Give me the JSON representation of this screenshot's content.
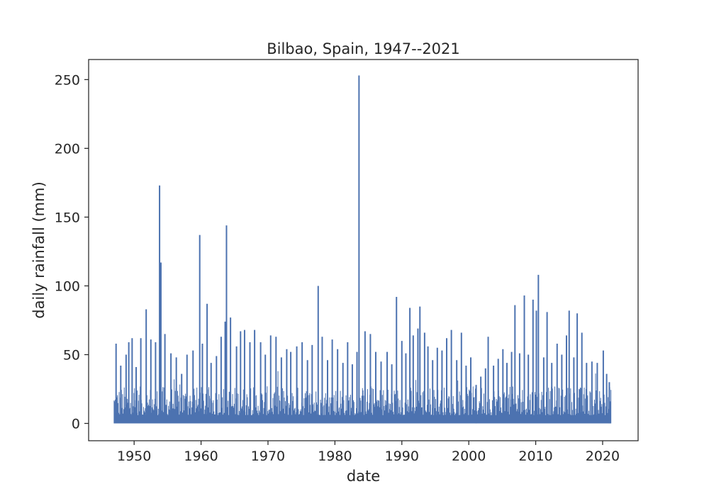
{
  "chart_data": {
    "type": "line",
    "title": "Bilbao, Spain, 1947--2021",
    "xlabel": "date",
    "ylabel": "daily rainfall (mm)",
    "xlim": [
      1943.2,
      2025.3
    ],
    "ylim": [
      -12.6,
      264.6
    ],
    "grid": false,
    "legend": "none",
    "color": "#4c72b0",
    "x_ticks": [
      1950,
      1960,
      1970,
      1980,
      1990,
      2000,
      2010,
      2020
    ],
    "x_tick_labels": [
      "1950",
      "1960",
      "1970",
      "1980",
      "1990",
      "2000",
      "2010",
      "2020"
    ],
    "y_ticks": [
      0,
      50,
      100,
      150,
      200,
      250
    ],
    "y_tick_labels": [
      "0",
      "50",
      "100",
      "150",
      "200",
      "250"
    ],
    "series_range": [
      "1947-01-01",
      "2021-03-31"
    ],
    "dense_band_max_mm": 27,
    "peaks": [
      {
        "x": 1947.3,
        "y": 58
      },
      {
        "x": 1948.0,
        "y": 42
      },
      {
        "x": 1948.8,
        "y": 50
      },
      {
        "x": 1949.2,
        "y": 59
      },
      {
        "x": 1949.7,
        "y": 62
      },
      {
        "x": 1950.3,
        "y": 41
      },
      {
        "x": 1951.0,
        "y": 62
      },
      {
        "x": 1951.8,
        "y": 83
      },
      {
        "x": 1952.5,
        "y": 61
      },
      {
        "x": 1953.2,
        "y": 59
      },
      {
        "x": 1953.8,
        "y": 173
      },
      {
        "x": 1954.0,
        "y": 117
      },
      {
        "x": 1954.6,
        "y": 65
      },
      {
        "x": 1955.5,
        "y": 51
      },
      {
        "x": 1956.3,
        "y": 48
      },
      {
        "x": 1957.1,
        "y": 36
      },
      {
        "x": 1957.9,
        "y": 50
      },
      {
        "x": 1958.8,
        "y": 53
      },
      {
        "x": 1959.8,
        "y": 137
      },
      {
        "x": 1960.2,
        "y": 58
      },
      {
        "x": 1960.9,
        "y": 87
      },
      {
        "x": 1961.5,
        "y": 44
      },
      {
        "x": 1962.3,
        "y": 49
      },
      {
        "x": 1963.0,
        "y": 63
      },
      {
        "x": 1963.6,
        "y": 74
      },
      {
        "x": 1963.8,
        "y": 144
      },
      {
        "x": 1964.4,
        "y": 77
      },
      {
        "x": 1965.3,
        "y": 56
      },
      {
        "x": 1965.9,
        "y": 67
      },
      {
        "x": 1966.5,
        "y": 68
      },
      {
        "x": 1967.3,
        "y": 59
      },
      {
        "x": 1968.0,
        "y": 68
      },
      {
        "x": 1968.9,
        "y": 59
      },
      {
        "x": 1969.6,
        "y": 50
      },
      {
        "x": 1970.4,
        "y": 64
      },
      {
        "x": 1971.2,
        "y": 63
      },
      {
        "x": 1972.0,
        "y": 48
      },
      {
        "x": 1972.8,
        "y": 54
      },
      {
        "x": 1973.4,
        "y": 52
      },
      {
        "x": 1974.3,
        "y": 56
      },
      {
        "x": 1975.1,
        "y": 59
      },
      {
        "x": 1975.9,
        "y": 46
      },
      {
        "x": 1976.6,
        "y": 57
      },
      {
        "x": 1977.5,
        "y": 100
      },
      {
        "x": 1978.1,
        "y": 63
      },
      {
        "x": 1978.9,
        "y": 46
      },
      {
        "x": 1979.6,
        "y": 61
      },
      {
        "x": 1980.4,
        "y": 54
      },
      {
        "x": 1981.2,
        "y": 44
      },
      {
        "x": 1981.9,
        "y": 59
      },
      {
        "x": 1982.6,
        "y": 43
      },
      {
        "x": 1983.3,
        "y": 52
      },
      {
        "x": 1983.6,
        "y": 253
      },
      {
        "x": 1984.5,
        "y": 67
      },
      {
        "x": 1985.3,
        "y": 65
      },
      {
        "x": 1986.1,
        "y": 52
      },
      {
        "x": 1986.9,
        "y": 45
      },
      {
        "x": 1987.8,
        "y": 52
      },
      {
        "x": 1988.5,
        "y": 43
      },
      {
        "x": 1989.2,
        "y": 92
      },
      {
        "x": 1990.0,
        "y": 60
      },
      {
        "x": 1990.6,
        "y": 51
      },
      {
        "x": 1991.2,
        "y": 84
      },
      {
        "x": 1991.7,
        "y": 64
      },
      {
        "x": 1992.4,
        "y": 69
      },
      {
        "x": 1992.7,
        "y": 85
      },
      {
        "x": 1993.4,
        "y": 66
      },
      {
        "x": 1993.9,
        "y": 56
      },
      {
        "x": 1994.6,
        "y": 46
      },
      {
        "x": 1995.3,
        "y": 55
      },
      {
        "x": 1996.0,
        "y": 53
      },
      {
        "x": 1996.7,
        "y": 62
      },
      {
        "x": 1997.4,
        "y": 68
      },
      {
        "x": 1998.2,
        "y": 46
      },
      {
        "x": 1998.9,
        "y": 66
      },
      {
        "x": 1999.6,
        "y": 42
      },
      {
        "x": 2000.3,
        "y": 48
      },
      {
        "x": 2001.1,
        "y": 28
      },
      {
        "x": 2001.8,
        "y": 34
      },
      {
        "x": 2002.5,
        "y": 40
      },
      {
        "x": 2002.9,
        "y": 63
      },
      {
        "x": 2003.7,
        "y": 42
      },
      {
        "x": 2004.4,
        "y": 47
      },
      {
        "x": 2005.1,
        "y": 54
      },
      {
        "x": 2005.7,
        "y": 44
      },
      {
        "x": 2006.4,
        "y": 52
      },
      {
        "x": 2006.9,
        "y": 86
      },
      {
        "x": 2007.6,
        "y": 51
      },
      {
        "x": 2008.3,
        "y": 93
      },
      {
        "x": 2008.9,
        "y": 50
      },
      {
        "x": 2009.6,
        "y": 90
      },
      {
        "x": 2010.1,
        "y": 82
      },
      {
        "x": 2010.4,
        "y": 108
      },
      {
        "x": 2011.2,
        "y": 48
      },
      {
        "x": 2011.7,
        "y": 81
      },
      {
        "x": 2012.4,
        "y": 44
      },
      {
        "x": 2013.2,
        "y": 58
      },
      {
        "x": 2013.9,
        "y": 50
      },
      {
        "x": 2014.6,
        "y": 64
      },
      {
        "x": 2015.0,
        "y": 82
      },
      {
        "x": 2015.7,
        "y": 48
      },
      {
        "x": 2016.2,
        "y": 80
      },
      {
        "x": 2016.9,
        "y": 66
      },
      {
        "x": 2017.6,
        "y": 44
      },
      {
        "x": 2018.4,
        "y": 45
      },
      {
        "x": 2019.2,
        "y": 44
      },
      {
        "x": 2020.1,
        "y": 53
      },
      {
        "x": 2020.6,
        "y": 36
      },
      {
        "x": 2021.0,
        "y": 30
      }
    ]
  }
}
